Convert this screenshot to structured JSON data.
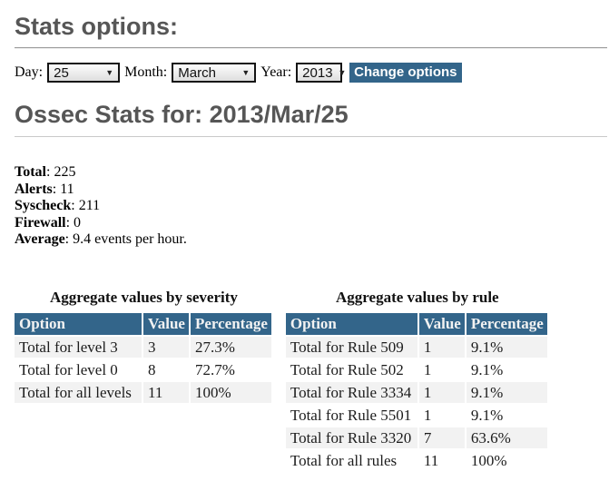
{
  "page": {
    "stats_options_title": "Stats options:",
    "stats_for_title": "Ossec Stats for: 2013/Mar/25"
  },
  "form": {
    "day_label": "Day:",
    "day_value": "25",
    "month_label": "Month:",
    "month_value": "March",
    "year_label": "Year:",
    "year_value": "2013",
    "dropdown_arrow": "▼",
    "change_button_label": "Change options"
  },
  "summary": {
    "separator": ": ",
    "items": [
      {
        "label": "Total",
        "value": "225"
      },
      {
        "label": "Alerts",
        "value": "11"
      },
      {
        "label": "Syscheck",
        "value": "211"
      },
      {
        "label": "Firewall",
        "value": "0"
      },
      {
        "label": "Average",
        "value": "9.4 events per hour."
      }
    ]
  },
  "tables": [
    {
      "caption": "Aggregate values by severity",
      "headers": [
        "Option",
        "Value",
        "Percentage"
      ],
      "rows": [
        [
          "Total for level 3",
          "3",
          "27.3%"
        ],
        [
          "Total for level 0",
          "8",
          "72.7%"
        ],
        [
          "Total for all levels",
          "11",
          "100%"
        ]
      ]
    },
    {
      "caption": "Aggregate values by rule",
      "headers": [
        "Option",
        "Value",
        "Percentage"
      ],
      "rows": [
        [
          "Total for Rule 509",
          "1",
          "9.1%"
        ],
        [
          "Total for Rule 502",
          "1",
          "9.1%"
        ],
        [
          "Total for Rule 3334",
          "1",
          "9.1%"
        ],
        [
          "Total for Rule 5501",
          "1",
          "9.1%"
        ],
        [
          "Total for Rule 3320",
          "7",
          "63.6%"
        ],
        [
          "Total for all rules",
          "11",
          "100%"
        ]
      ]
    }
  ],
  "colors": {
    "accent": "#33658a",
    "heading_text": "#565656",
    "row_stripe": "#f2f2f2",
    "header_text": "#f2f2f2"
  }
}
